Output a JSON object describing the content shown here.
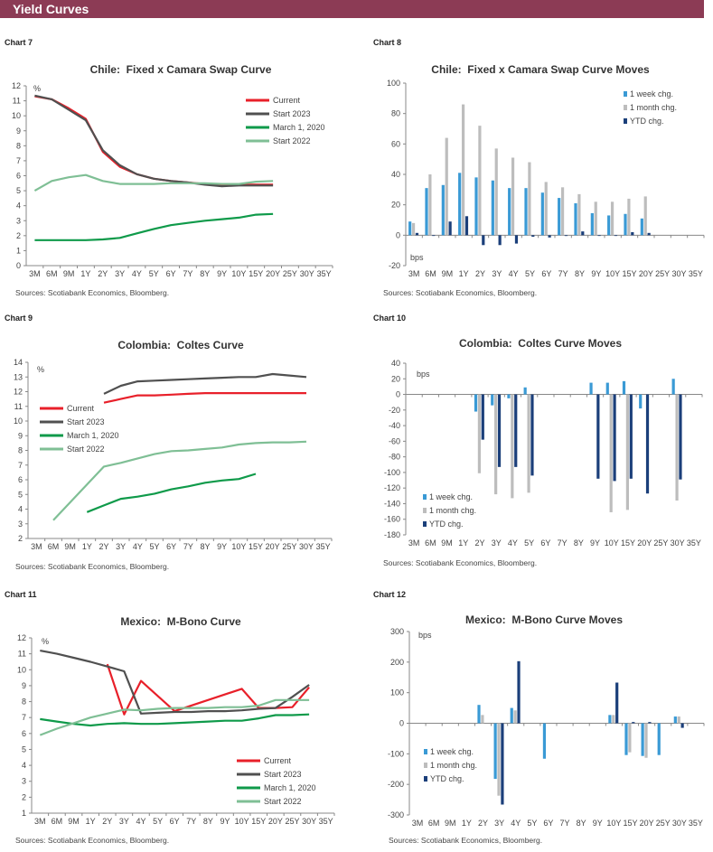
{
  "header": {
    "title": "Yield Curves"
  },
  "panels": [
    {
      "label": "Chart 7",
      "sources": "Sources: Scotiabank Economics, Bloomberg."
    },
    {
      "label": "Chart 8",
      "sources": "Sources: Scotiabank Economics, Bloomberg."
    },
    {
      "label": "Chart 9",
      "sources": "Sources: Scotiabank Economics, Bloomberg."
    },
    {
      "label": "Chart 10",
      "sources": "Sources: Scotiabank Economics, Bloomberg."
    },
    {
      "label": "Chart 11",
      "sources": "Sources: Scotiabank Economics, Bloomberg."
    },
    {
      "label": "Chart 12",
      "sources": "Sources: Scotiabank Economics, Bloomberg."
    }
  ],
  "chart_data": [
    {
      "type": "line",
      "title": "Chile:  Fixed x Camara Swap Curve",
      "unit_label": "%",
      "ylim": [
        0,
        12
      ],
      "ytick_step": 1,
      "legend_position": "top-right",
      "categories": [
        "3M",
        "6M",
        "9M",
        "1Y",
        "2Y",
        "3Y",
        "4Y",
        "5Y",
        "6Y",
        "7Y",
        "8Y",
        "9Y",
        "10Y",
        "15Y",
        "20Y",
        "25Y",
        "30Y",
        "35Y"
      ],
      "series": [
        {
          "name": "Current",
          "color": "#E8202A",
          "values": [
            11.3,
            11.1,
            10.5,
            9.8,
            7.6,
            6.6,
            6.1,
            5.8,
            5.65,
            5.55,
            5.45,
            5.35,
            5.4,
            5.4,
            5.4,
            null,
            null,
            null
          ]
        },
        {
          "name": "Start 2023",
          "color": "#505050",
          "values": [
            11.35,
            11.1,
            10.4,
            9.7,
            7.7,
            6.7,
            6.1,
            5.8,
            5.65,
            5.55,
            5.4,
            5.3,
            5.35,
            5.35,
            5.35,
            null,
            null,
            null
          ]
        },
        {
          "name": "March 1, 2020",
          "color": "#0F9A4A",
          "values": [
            1.7,
            1.7,
            1.7,
            1.7,
            1.75,
            1.85,
            2.15,
            2.45,
            2.7,
            2.85,
            3.0,
            3.1,
            3.2,
            3.4,
            3.45,
            null,
            null,
            null
          ]
        },
        {
          "name": "Start 2022",
          "color": "#7FBF95",
          "values": [
            5.0,
            5.65,
            5.9,
            6.05,
            5.65,
            5.45,
            5.45,
            5.45,
            5.5,
            5.5,
            5.5,
            5.45,
            5.45,
            5.6,
            5.65,
            null,
            null,
            null
          ]
        }
      ]
    },
    {
      "type": "bar",
      "title": "Chile:  Fixed x Camara Swap Curve Moves",
      "unit_label": "bps",
      "ylim": [
        -20,
        100
      ],
      "ytick_step": 20,
      "legend_position": "top-right",
      "categories": [
        "3M",
        "6M",
        "9M",
        "1Y",
        "2Y",
        "3Y",
        "4Y",
        "5Y",
        "6Y",
        "7Y",
        "8Y",
        "9Y",
        "10Y",
        "15Y",
        "20Y",
        "25Y",
        "30Y",
        "35Y"
      ],
      "series": [
        {
          "name": "1 week chg.",
          "color": "#3A9AD5",
          "values": [
            9,
            31,
            33,
            41,
            38,
            36,
            31,
            31,
            28,
            24.5,
            21,
            14.5,
            13,
            14,
            11,
            null,
            null,
            null
          ]
        },
        {
          "name": "1 month chg.",
          "color": "#BDBDBD",
          "values": [
            8,
            40,
            64,
            86,
            72,
            57,
            51,
            48,
            35,
            31.5,
            27,
            22,
            22,
            24,
            25.5,
            null,
            null,
            null
          ]
        },
        {
          "name": "YTD chg.",
          "color": "#1B3F7A",
          "values": [
            1.5,
            0,
            9,
            12.5,
            -6.5,
            -6.5,
            -5.5,
            -1,
            -1.5,
            -0.5,
            2.5,
            -0.3,
            0,
            2,
            1.5,
            null,
            null,
            null
          ]
        }
      ]
    },
    {
      "type": "line",
      "title": "Colombia:  Coltes Curve",
      "unit_label": "%",
      "ylim": [
        2,
        14
      ],
      "ytick_step": 1,
      "legend_position": "middle-left",
      "categories": [
        "3M",
        "6M",
        "9M",
        "1Y",
        "2Y",
        "3Y",
        "4Y",
        "5Y",
        "6Y",
        "7Y",
        "8Y",
        "9Y",
        "10Y",
        "15Y",
        "20Y",
        "25Y",
        "30Y",
        "35Y"
      ],
      "series": [
        {
          "name": "Current",
          "color": "#E8202A",
          "values": [
            null,
            null,
            null,
            null,
            11.25,
            11.5,
            11.75,
            11.75,
            11.8,
            11.85,
            11.9,
            11.9,
            11.9,
            11.9,
            11.9,
            11.9,
            11.9,
            null
          ]
        },
        {
          "name": "Start 2023",
          "color": "#505050",
          "values": [
            null,
            null,
            null,
            null,
            11.85,
            12.4,
            12.7,
            12.75,
            12.8,
            12.85,
            12.9,
            12.95,
            13.0,
            13.0,
            13.2,
            13.1,
            13.0,
            null
          ]
        },
        {
          "name": "March 1, 2020",
          "color": "#0F9A4A",
          "values": [
            null,
            null,
            null,
            3.8,
            4.25,
            4.7,
            4.85,
            5.05,
            5.35,
            5.55,
            5.8,
            5.95,
            6.05,
            6.4,
            null,
            null,
            null,
            null
          ]
        },
        {
          "name": "Start 2022",
          "color": "#7FBF95",
          "values": [
            null,
            3.25,
            null,
            null,
            6.9,
            7.15,
            7.45,
            7.75,
            7.95,
            8.0,
            8.1,
            8.2,
            8.4,
            8.5,
            8.55,
            8.55,
            8.6,
            null
          ]
        }
      ]
    },
    {
      "type": "bar",
      "title": "Colombia:  Coltes Curve Moves",
      "unit_label": "bps",
      "ylim": [
        -180,
        40
      ],
      "ytick_step": 20,
      "legend_position": "bottom-left",
      "categories": [
        "3M",
        "6M",
        "9M",
        "1Y",
        "2Y",
        "3Y",
        "4Y",
        "5Y",
        "6Y",
        "7Y",
        "8Y",
        "9Y",
        "10Y",
        "15Y",
        "20Y",
        "25Y",
        "30Y",
        "35Y"
      ],
      "series": [
        {
          "name": "1 week chg.",
          "color": "#3A9AD5",
          "values": [
            null,
            null,
            null,
            null,
            -22,
            -14,
            -5,
            9,
            null,
            null,
            null,
            15,
            15,
            17,
            -18,
            null,
            20,
            null
          ]
        },
        {
          "name": "1 month chg.",
          "color": "#BDBDBD",
          "values": [
            null,
            null,
            null,
            null,
            -101,
            -128,
            -133,
            -126,
            null,
            null,
            null,
            null,
            -151,
            -148,
            null,
            null,
            -136,
            null
          ]
        },
        {
          "name": "YTD chg.",
          "color": "#1B3F7A",
          "values": [
            null,
            null,
            null,
            null,
            -58,
            -93,
            -93,
            -104,
            null,
            null,
            null,
            -108,
            -111,
            -108,
            -127,
            null,
            -109,
            null
          ]
        }
      ]
    },
    {
      "type": "line",
      "title": "Mexico:  M-Bono Curve",
      "unit_label": "%",
      "ylim": [
        1,
        12
      ],
      "ytick_step": 1,
      "legend_position": "bottom-right",
      "categories": [
        "3M",
        "6M",
        "9M",
        "1Y",
        "2Y",
        "3Y",
        "4Y",
        "5Y",
        "6Y",
        "7Y",
        "8Y",
        "9Y",
        "10Y",
        "15Y",
        "20Y",
        "25Y",
        "30Y",
        "35Y"
      ],
      "series": [
        {
          "name": "Current",
          "color": "#E8202A",
          "values": [
            null,
            null,
            null,
            null,
            10.35,
            7.2,
            9.3,
            null,
            7.4,
            null,
            null,
            null,
            8.8,
            7.6,
            7.6,
            7.65,
            8.9,
            null
          ]
        },
        {
          "name": "Start 2023",
          "color": "#505050",
          "values": [
            11.2,
            11.0,
            10.75,
            10.5,
            10.2,
            9.9,
            7.25,
            7.3,
            7.35,
            7.35,
            7.4,
            7.4,
            7.45,
            7.55,
            7.6,
            8.3,
            9.05,
            null
          ]
        },
        {
          "name": "March 1, 2020",
          "color": "#0F9A4A",
          "values": [
            6.9,
            6.75,
            6.6,
            6.5,
            6.6,
            6.65,
            6.6,
            6.6,
            6.65,
            6.7,
            6.75,
            6.8,
            6.8,
            6.95,
            7.15,
            7.15,
            7.2,
            null
          ]
        },
        {
          "name": "Start 2022",
          "color": "#7FBF95",
          "values": [
            5.9,
            6.3,
            6.65,
            7.0,
            7.25,
            7.5,
            7.45,
            7.55,
            7.6,
            7.6,
            7.6,
            7.65,
            7.65,
            7.75,
            8.1,
            8.1,
            8.1,
            null
          ]
        }
      ]
    },
    {
      "type": "bar",
      "title": "Mexico:  M-Bono Curve Moves",
      "unit_label": "bps",
      "ylim": [
        -300,
        300
      ],
      "ytick_step": 100,
      "legend_position": "bottom-left",
      "categories": [
        "3M",
        "6M",
        "9M",
        "1Y",
        "2Y",
        "3Y",
        "4Y",
        "5Y",
        "6Y",
        "7Y",
        "8Y",
        "9Y",
        "10Y",
        "15Y",
        "20Y",
        "25Y",
        "30Y",
        "35Y"
      ],
      "series": [
        {
          "name": "1 week chg.",
          "color": "#3A9AD5",
          "values": [
            null,
            null,
            null,
            null,
            60,
            -182,
            50,
            null,
            -116,
            null,
            null,
            null,
            27,
            -104,
            -107,
            -104,
            22,
            null
          ]
        },
        {
          "name": "1 month chg.",
          "color": "#BDBDBD",
          "values": [
            null,
            null,
            null,
            null,
            27,
            -237,
            42,
            null,
            null,
            null,
            null,
            null,
            27,
            -95,
            -113,
            null,
            22,
            null
          ]
        },
        {
          "name": "YTD chg.",
          "color": "#1B3F7A",
          "values": [
            null,
            null,
            null,
            null,
            null,
            -266,
            203,
            null,
            null,
            null,
            null,
            null,
            133,
            4,
            4,
            null,
            -15,
            null
          ]
        }
      ]
    }
  ]
}
